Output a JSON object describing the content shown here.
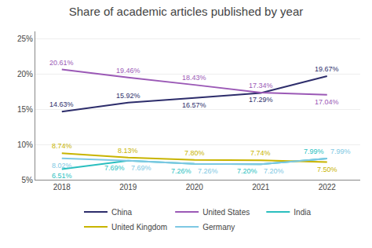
{
  "chart_data": {
    "type": "line",
    "title": "Share of academic articles published by year",
    "x": [
      2018,
      2019,
      2020,
      2021,
      2022
    ],
    "series": [
      {
        "name": "China",
        "color": "#2d2d6b",
        "values": [
          14.63,
          15.92,
          16.57,
          17.29,
          19.67
        ],
        "value_labels": [
          "14.63%",
          "15.92%",
          "16.57%",
          "17.29%",
          "19.67%"
        ]
      },
      {
        "name": "United States",
        "color": "#9b59b6",
        "values": [
          20.61,
          19.46,
          18.43,
          17.34,
          17.04
        ],
        "value_labels": [
          "20.61%",
          "19.46%",
          "18.43%",
          "17.34%",
          "17.04%"
        ]
      },
      {
        "name": "India",
        "color": "#2abfbf",
        "values": [
          6.51,
          7.69,
          7.26,
          7.2,
          7.99
        ],
        "value_labels": [
          "6.51%",
          "7.69%",
          "7.26%",
          "7.20%",
          "7.99%"
        ]
      },
      {
        "name": "United Kingdom",
        "color": "#c8b400",
        "values": [
          8.74,
          8.13,
          7.8,
          7.74,
          7.5
        ],
        "value_labels": [
          "8.74%",
          "8.13%",
          "7.80%",
          "7.74%",
          "7.50%"
        ]
      },
      {
        "name": "Germany",
        "color": "#7ec8e3",
        "values": [
          8.02,
          7.69,
          7.26,
          7.2,
          7.99
        ],
        "value_labels": [
          "8.02%",
          "7.69%",
          "7.26%",
          "7.20%",
          "7.99%"
        ]
      }
    ],
    "xlim": [
      2017.6,
      2022.5
    ],
    "xticks": [
      2018,
      2019,
      2020,
      2021,
      2022
    ],
    "ylim": [
      5,
      26
    ],
    "yticks": [
      {
        "value": 5,
        "label": "5%"
      },
      {
        "value": 10,
        "label": "10%"
      },
      {
        "value": 15,
        "label": "15%"
      },
      {
        "value": 20,
        "label": "20%"
      },
      {
        "value": 25,
        "label": "25%"
      }
    ],
    "grid": true,
    "legend": "bottom",
    "data_labels": true
  }
}
